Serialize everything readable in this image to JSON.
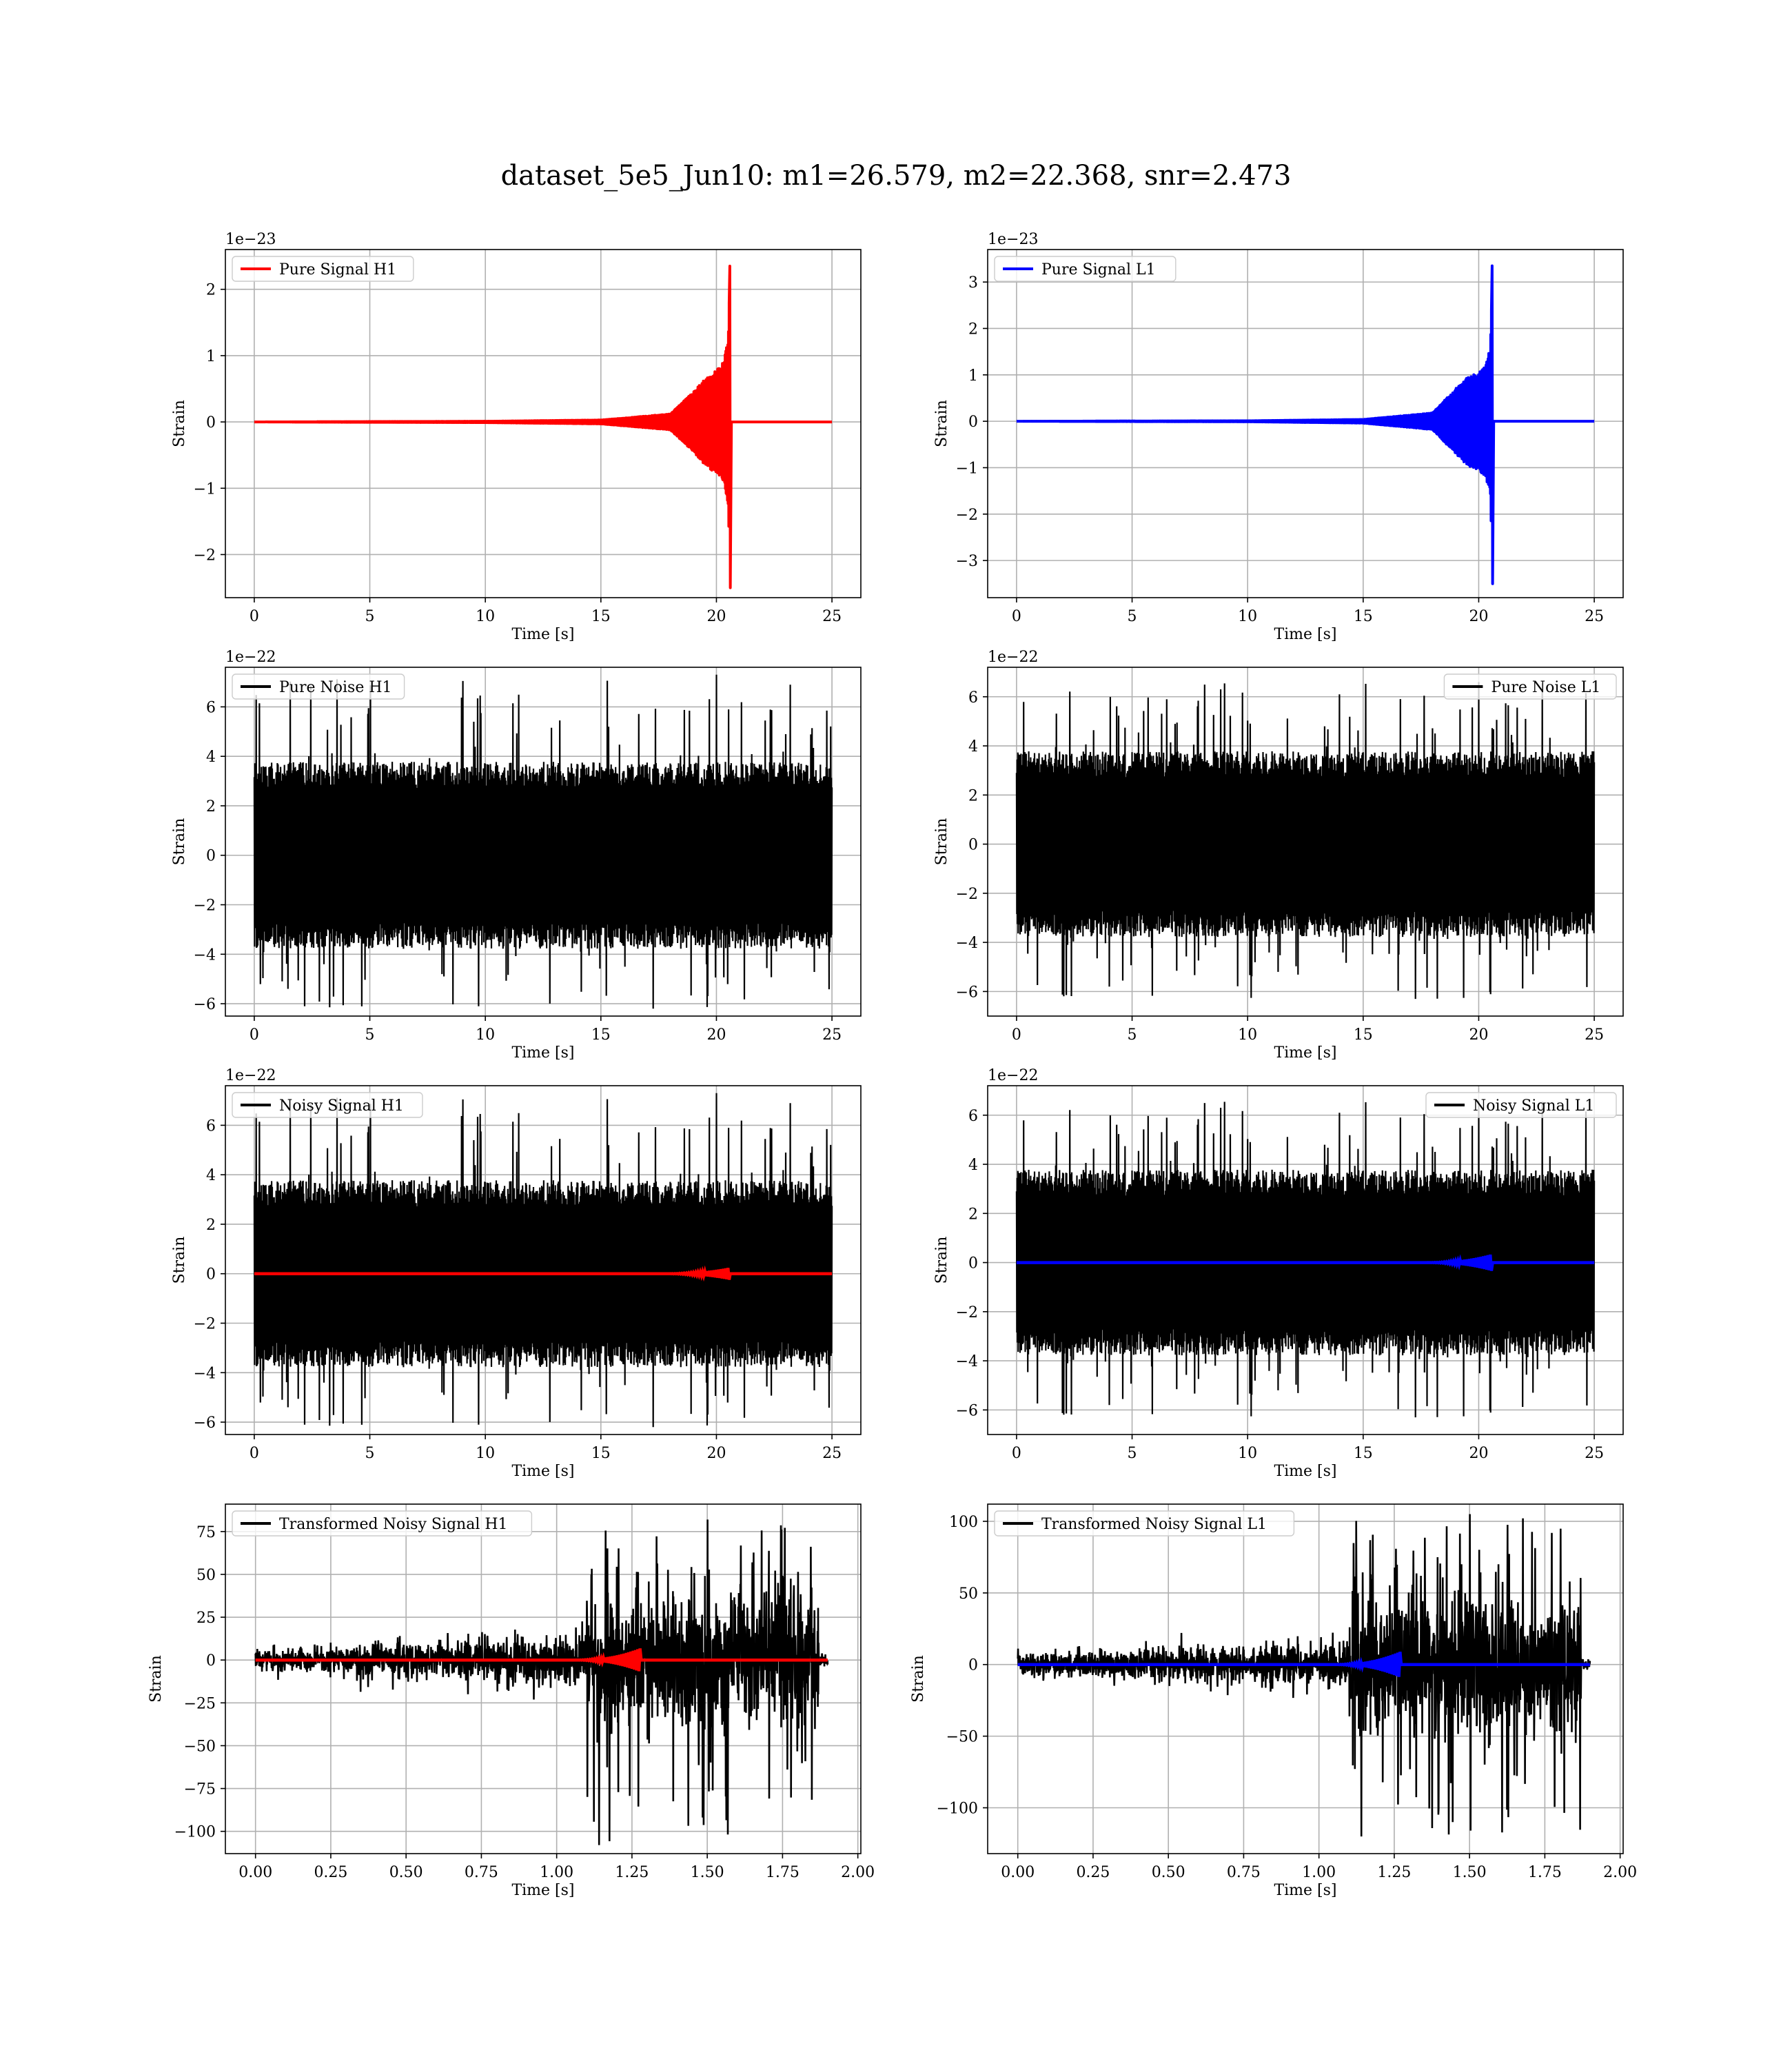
{
  "figure": {
    "title": "dataset_5e5_Jun10: m1=26.579, m2=22.368, snr=2.473"
  },
  "chart_data": [
    {
      "id": "h1-pure-signal",
      "type": "line",
      "xlabel": "Time [s]",
      "ylabel": "Strain",
      "offset_text": "1e−23",
      "xlim": [
        -1.25,
        26.25
      ],
      "ylim": [
        -2.65,
        2.6
      ],
      "xticks": [
        0,
        5,
        10,
        15,
        20,
        25
      ],
      "xtick_labels": [
        "0",
        "5",
        "10",
        "15",
        "20",
        "25"
      ],
      "yticks": [
        -2,
        -1,
        0,
        1,
        2
      ],
      "ytick_labels": [
        "−2",
        "−1",
        "0",
        "1",
        "2"
      ],
      "grid": true,
      "legend": {
        "position": "upper-left",
        "entries": [
          {
            "label": "Pure Signal H1",
            "color": "#ff0000"
          }
        ]
      },
      "series": [
        {
          "name": "Pure Signal H1",
          "color": "#ff0000",
          "kind": "chirp",
          "t_start": 0,
          "t_end": 25,
          "t_merger": 20.6,
          "points": [
            [
              0,
              0
            ],
            [
              10,
              0.01
            ],
            [
              15,
              0.03
            ],
            [
              18,
              0.12
            ],
            [
              19,
              0.45
            ],
            [
              19.5,
              0.65
            ],
            [
              20.0,
              0.78
            ],
            [
              20.3,
              0.9
            ],
            [
              20.5,
              1.25
            ],
            [
              20.6,
              2.35
            ],
            [
              20.62,
              -2.5
            ],
            [
              20.7,
              0.05
            ],
            [
              25,
              0
            ]
          ]
        }
      ]
    },
    {
      "id": "l1-pure-signal",
      "type": "line",
      "xlabel": "Time [s]",
      "ylabel": "Strain",
      "offset_text": "1e−23",
      "xlim": [
        -1.25,
        26.25
      ],
      "ylim": [
        -3.8,
        3.7
      ],
      "xticks": [
        0,
        5,
        10,
        15,
        20,
        25
      ],
      "xtick_labels": [
        "0",
        "5",
        "10",
        "15",
        "20",
        "25"
      ],
      "yticks": [
        -3,
        -2,
        -1,
        0,
        1,
        2,
        3
      ],
      "ytick_labels": [
        "−3",
        "−2",
        "−1",
        "0",
        "1",
        "2",
        "3"
      ],
      "grid": true,
      "legend": {
        "position": "upper-left",
        "entries": [
          {
            "label": "Pure Signal L1",
            "color": "#0000ff"
          }
        ]
      },
      "series": [
        {
          "name": "Pure Signal L1",
          "color": "#0000ff",
          "kind": "chirp",
          "t_start": 0,
          "t_end": 25,
          "t_merger": 20.6,
          "points": [
            [
              0,
              0
            ],
            [
              10,
              0.01
            ],
            [
              15,
              0.04
            ],
            [
              18,
              0.18
            ],
            [
              19,
              0.7
            ],
            [
              19.5,
              0.95
            ],
            [
              20.0,
              1.05
            ],
            [
              20.3,
              1.2
            ],
            [
              20.5,
              1.6
            ],
            [
              20.6,
              3.35
            ],
            [
              20.62,
              -3.5
            ],
            [
              20.7,
              0.05
            ],
            [
              25,
              0
            ]
          ]
        }
      ]
    },
    {
      "id": "h1-pure-noise",
      "type": "line",
      "xlabel": "Time [s]",
      "ylabel": "Strain",
      "offset_text": "1e−22",
      "xlim": [
        -1.25,
        26.25
      ],
      "ylim": [
        -6.5,
        7.6
      ],
      "xticks": [
        0,
        5,
        10,
        15,
        20,
        25
      ],
      "xtick_labels": [
        "0",
        "5",
        "10",
        "15",
        "20",
        "25"
      ],
      "yticks": [
        -6,
        -4,
        -2,
        0,
        2,
        4,
        6
      ],
      "ytick_labels": [
        "−6",
        "−4",
        "−2",
        "0",
        "2",
        "4",
        "6"
      ],
      "grid": true,
      "legend": {
        "position": "upper-left",
        "entries": [
          {
            "label": "Pure Noise H1",
            "color": "#000000"
          }
        ]
      },
      "series": [
        {
          "name": "Pure Noise H1",
          "color": "#000000",
          "kind": "noise",
          "t_start": 0,
          "t_end": 25,
          "core": 3.6,
          "peak_max": 7.3,
          "peak_min": -6.2
        }
      ]
    },
    {
      "id": "l1-pure-noise",
      "type": "line",
      "xlabel": "Time [s]",
      "ylabel": "Strain",
      "offset_text": "1e−22",
      "xlim": [
        -1.25,
        26.25
      ],
      "ylim": [
        -7.0,
        7.2
      ],
      "xticks": [
        0,
        5,
        10,
        15,
        20,
        25
      ],
      "xtick_labels": [
        "0",
        "5",
        "10",
        "15",
        "20",
        "25"
      ],
      "yticks": [
        -6,
        -4,
        -2,
        0,
        2,
        4,
        6
      ],
      "ytick_labels": [
        "−6",
        "−4",
        "−2",
        "0",
        "2",
        "4",
        "6"
      ],
      "grid": true,
      "legend": {
        "position": "upper-right",
        "entries": [
          {
            "label": "Pure Noise L1",
            "color": "#000000"
          }
        ]
      },
      "series": [
        {
          "name": "Pure Noise L1",
          "color": "#000000",
          "kind": "noise",
          "t_start": 0,
          "t_end": 25,
          "core": 3.6,
          "peak_max": 6.6,
          "peak_min": -6.3
        }
      ]
    },
    {
      "id": "h1-noisy-signal",
      "type": "line",
      "xlabel": "Time [s]",
      "ylabel": "Strain",
      "offset_text": "1e−22",
      "xlim": [
        -1.25,
        26.25
      ],
      "ylim": [
        -6.5,
        7.6
      ],
      "xticks": [
        0,
        5,
        10,
        15,
        20,
        25
      ],
      "xtick_labels": [
        "0",
        "5",
        "10",
        "15",
        "20",
        "25"
      ],
      "yticks": [
        -6,
        -4,
        -2,
        0,
        2,
        4,
        6
      ],
      "ytick_labels": [
        "−6",
        "−4",
        "−2",
        "0",
        "2",
        "4",
        "6"
      ],
      "grid": true,
      "legend": {
        "position": "upper-left",
        "entries": [
          {
            "label": "Noisy Signal H1",
            "color": "#000000"
          }
        ]
      },
      "series": [
        {
          "name": "Noisy Signal H1",
          "color": "#000000",
          "kind": "noise",
          "t_start": 0,
          "t_end": 25,
          "core": 3.6,
          "peak_max": 7.3,
          "peak_min": -6.2
        },
        {
          "color": "#ff0000",
          "kind": "chirp-overlay",
          "t_start": 0,
          "t_end": 25,
          "t_merger": 20.6,
          "amp": 0.25
        }
      ]
    },
    {
      "id": "l1-noisy-signal",
      "type": "line",
      "xlabel": "Time [s]",
      "ylabel": "Strain",
      "offset_text": "1e−22",
      "xlim": [
        -1.25,
        26.25
      ],
      "ylim": [
        -7.0,
        7.2
      ],
      "xticks": [
        0,
        5,
        10,
        15,
        20,
        25
      ],
      "xtick_labels": [
        "0",
        "5",
        "10",
        "15",
        "20",
        "25"
      ],
      "yticks": [
        -6,
        -4,
        -2,
        0,
        2,
        4,
        6
      ],
      "ytick_labels": [
        "−6",
        "−4",
        "−2",
        "0",
        "2",
        "4",
        "6"
      ],
      "grid": true,
      "legend": {
        "position": "upper-right",
        "entries": [
          {
            "label": "Noisy Signal L1",
            "color": "#000000"
          }
        ]
      },
      "series": [
        {
          "name": "Noisy Signal L1",
          "color": "#000000",
          "kind": "noise",
          "t_start": 0,
          "t_end": 25,
          "core": 3.6,
          "peak_max": 6.6,
          "peak_min": -6.3
        },
        {
          "color": "#0000ff",
          "kind": "chirp-overlay",
          "t_start": 0,
          "t_end": 25,
          "t_merger": 20.6,
          "amp": 0.35
        }
      ]
    },
    {
      "id": "h1-transformed",
      "type": "line",
      "xlabel": "Time [s]",
      "ylabel": "Strain",
      "offset_text": "",
      "xlim": [
        -0.1,
        2.01
      ],
      "ylim": [
        -113,
        91
      ],
      "xticks": [
        0,
        0.25,
        0.5,
        0.75,
        1.0,
        1.25,
        1.5,
        1.75,
        2.0
      ],
      "xtick_labels": [
        "0.00",
        "0.25",
        "0.50",
        "0.75",
        "1.00",
        "1.25",
        "1.50",
        "1.75",
        "2.00"
      ],
      "yticks": [
        -100,
        -75,
        -50,
        -25,
        0,
        25,
        50,
        75
      ],
      "ytick_labels": [
        "−100",
        "−75",
        "−50",
        "−25",
        "0",
        "25",
        "50",
        "75"
      ],
      "grid": true,
      "legend": {
        "position": "upper-left",
        "entries": [
          {
            "label": "Transformed Noisy Signal H1",
            "color": "#000000"
          }
        ]
      },
      "series": [
        {
          "name": "Transformed Noisy Signal H1",
          "color": "#000000",
          "kind": "transformed-noise",
          "t_start": 0,
          "t_end": 1.9,
          "t_jump": 1.1,
          "t_stop": 1.87,
          "early_amp": 6,
          "late_amp": 35,
          "peak_max": 82,
          "peak_min": -108
        },
        {
          "color": "#ff0000",
          "kind": "chirp-overlay",
          "t_start": 0,
          "t_end": 1.9,
          "t_merger": 1.28,
          "amp": 7
        }
      ]
    },
    {
      "id": "l1-transformed",
      "type": "line",
      "xlabel": "Time [s]",
      "ylabel": "Strain",
      "offset_text": "",
      "xlim": [
        -0.1,
        2.01
      ],
      "ylim": [
        -132,
        112
      ],
      "xticks": [
        0,
        0.25,
        0.5,
        0.75,
        1.0,
        1.25,
        1.5,
        1.75,
        2.0
      ],
      "xtick_labels": [
        "0.00",
        "0.25",
        "0.50",
        "0.75",
        "1.00",
        "1.25",
        "1.50",
        "1.75",
        "2.00"
      ],
      "yticks": [
        -100,
        -50,
        0,
        50,
        100
      ],
      "ytick_labels": [
        "−100",
        "−50",
        "0",
        "50",
        "100"
      ],
      "grid": true,
      "legend": {
        "position": "upper-left",
        "entries": [
          {
            "label": "Transformed Noisy Signal L1",
            "color": "#000000"
          }
        ]
      },
      "series": [
        {
          "name": "Transformed Noisy Signal L1",
          "color": "#000000",
          "kind": "transformed-noise",
          "t_start": 0,
          "t_end": 1.9,
          "t_jump": 1.1,
          "t_stop": 1.87,
          "early_amp": 7,
          "late_amp": 42,
          "peak_max": 105,
          "peak_min": -120
        },
        {
          "color": "#0000ff",
          "kind": "chirp-overlay",
          "t_start": 0,
          "t_end": 1.9,
          "t_merger": 1.27,
          "amp": 9
        }
      ]
    }
  ]
}
